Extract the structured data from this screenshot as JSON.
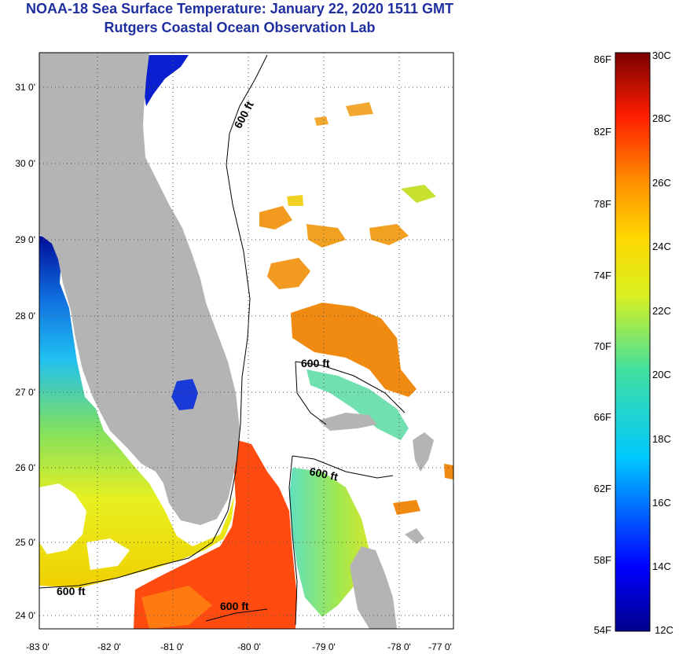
{
  "title": "NOAA-18 Sea Surface Temperature:  January 22, 2020 1511 GMT",
  "subtitle": "Rutgers Coastal Ocean Observation Lab",
  "map": {
    "lon_labels": [
      "-83 0'",
      "-82 0'",
      "-81 0'",
      "-80 0'",
      "-79 0'",
      "-78 0'",
      "-77 0'"
    ],
    "lat_labels": [
      "31 0'",
      "30 0'",
      "29 0'",
      "28 0'",
      "27 0'",
      "26 0'",
      "25 0'",
      "24 0'"
    ],
    "contour_labels": [
      "600 ft",
      "600 ft",
      "600 ft",
      "600 ft"
    ],
    "colors": {
      "land": "#b4b4b4",
      "cloud": "#ffffff"
    }
  },
  "colorbar": {
    "fahrenheit": [
      "86F",
      "82F",
      "78F",
      "74F",
      "70F",
      "66F",
      "62F",
      "58F",
      "54F"
    ],
    "celsius": [
      "30C",
      "28C",
      "26C",
      "24C",
      "22C",
      "20C",
      "18C",
      "16C",
      "14C",
      "12C"
    ]
  }
}
